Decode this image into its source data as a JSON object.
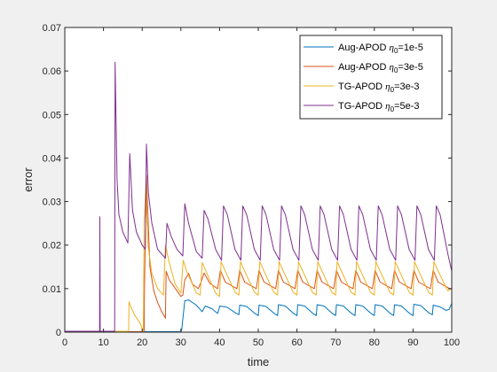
{
  "chart_data": {
    "type": "line",
    "title": "",
    "xlabel": "time",
    "ylabel": "error",
    "xlim": [
      0,
      100
    ],
    "ylim": [
      0,
      0.07
    ],
    "xticks": [
      "0",
      "10",
      "20",
      "30",
      "40",
      "50",
      "60",
      "70",
      "80",
      "90",
      "100"
    ],
    "yticks": [
      "0",
      "0.01",
      "0.02",
      "0.03",
      "0.04",
      "0.05",
      "0.06",
      "0.07"
    ],
    "grid": false,
    "legend_position": "top-right",
    "series": [
      {
        "name": "Aug-APOD η0=1e-5",
        "legend_main": "Aug-APOD ",
        "legend_sym": "η",
        "legend_sub": "0",
        "legend_rest": "=1e-5",
        "color": "#0072BD",
        "points": [
          [
            0,
            0.0001
          ],
          [
            30,
            0.0001
          ],
          [
            30.2,
            0.0005
          ],
          [
            31,
            0.0072
          ],
          [
            32,
            0.0074
          ],
          [
            34,
            0.0062
          ],
          [
            35.5,
            0.0047
          ],
          [
            36.3,
            0.006
          ],
          [
            38,
            0.0054
          ],
          [
            39.5,
            0.0043
          ],
          [
            40.1,
            0.006
          ],
          [
            42,
            0.0057
          ],
          [
            44,
            0.0045
          ],
          [
            45,
            0.004
          ],
          [
            45.2,
            0.0062
          ],
          [
            47,
            0.0059
          ],
          [
            49,
            0.0044
          ],
          [
            50,
            0.0038
          ],
          [
            50.2,
            0.0062
          ],
          [
            52,
            0.0059
          ],
          [
            54,
            0.0044
          ],
          [
            55,
            0.0038
          ],
          [
            55.2,
            0.0063
          ],
          [
            57,
            0.006
          ],
          [
            59,
            0.0044
          ],
          [
            60,
            0.0038
          ],
          [
            60.2,
            0.0063
          ],
          [
            62,
            0.006
          ],
          [
            64,
            0.0044
          ],
          [
            65,
            0.0038
          ],
          [
            65.2,
            0.0063
          ],
          [
            67,
            0.006
          ],
          [
            69,
            0.0044
          ],
          [
            70,
            0.0038
          ],
          [
            70.2,
            0.0063
          ],
          [
            72,
            0.006
          ],
          [
            74,
            0.0044
          ],
          [
            75,
            0.0038
          ],
          [
            75.2,
            0.0063
          ],
          [
            77,
            0.006
          ],
          [
            79,
            0.0044
          ],
          [
            80,
            0.0038
          ],
          [
            80.2,
            0.0063
          ],
          [
            82,
            0.006
          ],
          [
            84,
            0.0044
          ],
          [
            85,
            0.0038
          ],
          [
            85.2,
            0.0063
          ],
          [
            87,
            0.006
          ],
          [
            89,
            0.0044
          ],
          [
            90,
            0.0038
          ],
          [
            90.2,
            0.0064
          ],
          [
            92,
            0.0061
          ],
          [
            94,
            0.0045
          ],
          [
            95,
            0.004
          ],
          [
            95.2,
            0.0062
          ],
          [
            97,
            0.0058
          ],
          [
            98.5,
            0.005
          ],
          [
            99.3,
            0.0052
          ],
          [
            100,
            0.0066
          ]
        ]
      },
      {
        "name": "Aug-APOD η0=3e-5",
        "legend_main": "Aug-APOD ",
        "legend_sym": "η",
        "legend_sub": "0",
        "legend_rest": "=3e-5",
        "color": "#D95319",
        "points": [
          [
            0,
            0.0001
          ],
          [
            20.5,
            0.0001
          ],
          [
            20.6,
            0.01
          ],
          [
            21.1,
            0.036
          ],
          [
            22,
            0.015
          ],
          [
            23,
            0.0095
          ],
          [
            24,
            0.0068
          ],
          [
            25,
            0.0048
          ],
          [
            26,
            0.0032
          ],
          [
            26.2,
            0.014
          ],
          [
            27,
            0.012
          ],
          [
            29,
            0.0095
          ],
          [
            30,
            0.0082
          ],
          [
            30.5,
            0.0085
          ],
          [
            31,
            0.012
          ],
          [
            32,
            0.0135
          ],
          [
            33,
            0.011
          ],
          [
            34.5,
            0.01
          ],
          [
            35.2,
            0.0115
          ],
          [
            36,
            0.0136
          ],
          [
            37.5,
            0.0112
          ],
          [
            39.5,
            0.01
          ],
          [
            40.2,
            0.0142
          ],
          [
            41.5,
            0.0115
          ],
          [
            44.5,
            0.01
          ],
          [
            45.2,
            0.0142
          ],
          [
            46.5,
            0.0115
          ],
          [
            49.5,
            0.01
          ],
          [
            50.2,
            0.0142
          ],
          [
            51.5,
            0.0115
          ],
          [
            54.5,
            0.01
          ],
          [
            55.2,
            0.0142
          ],
          [
            56.5,
            0.0115
          ],
          [
            59.5,
            0.01
          ],
          [
            60.2,
            0.0142
          ],
          [
            61.5,
            0.0115
          ],
          [
            64.5,
            0.01
          ],
          [
            65.2,
            0.0142
          ],
          [
            66.5,
            0.0115
          ],
          [
            69.5,
            0.01
          ],
          [
            70.2,
            0.0142
          ],
          [
            71.5,
            0.0115
          ],
          [
            74.5,
            0.01
          ],
          [
            75.2,
            0.0142
          ],
          [
            76.5,
            0.0115
          ],
          [
            79.5,
            0.01
          ],
          [
            80.2,
            0.0142
          ],
          [
            81.5,
            0.0115
          ],
          [
            84.5,
            0.01
          ],
          [
            85.2,
            0.0142
          ],
          [
            86.5,
            0.0115
          ],
          [
            89.5,
            0.01
          ],
          [
            90.2,
            0.0142
          ],
          [
            91.5,
            0.0115
          ],
          [
            94.5,
            0.01
          ],
          [
            95.2,
            0.0142
          ],
          [
            96.5,
            0.0115
          ],
          [
            99.5,
            0.01
          ],
          [
            100,
            0.01
          ]
        ]
      },
      {
        "name": "TG-APOD η0=3e-3",
        "legend_main": "TG-APOD ",
        "legend_sym": "η",
        "legend_sub": "0",
        "legend_rest": "=3e-3",
        "color": "#EDB120",
        "points": [
          [
            0,
            0.0002
          ],
          [
            16.5,
            0.0002
          ],
          [
            16.6,
            0.007
          ],
          [
            17,
            0.006
          ],
          [
            18,
            0.004
          ],
          [
            19.5,
            0.002
          ],
          [
            20.3,
            0.0001
          ],
          [
            20.5,
            0.025
          ],
          [
            21,
            0.035
          ],
          [
            21.5,
            0.02
          ],
          [
            22.5,
            0.0135
          ],
          [
            24,
            0.01
          ],
          [
            25.5,
            0.0085
          ],
          [
            26,
            0.02
          ],
          [
            27,
            0.016
          ],
          [
            28.5,
            0.011
          ],
          [
            30,
            0.009
          ],
          [
            30.6,
            0.0165
          ],
          [
            31.5,
            0.014
          ],
          [
            34,
            0.009
          ],
          [
            35,
            0.0085
          ],
          [
            35.5,
            0.016
          ],
          [
            36.5,
            0.014
          ],
          [
            39,
            0.009
          ],
          [
            40,
            0.0082
          ],
          [
            40.4,
            0.0162
          ],
          [
            41.5,
            0.014
          ],
          [
            44,
            0.0092
          ],
          [
            45,
            0.0085
          ],
          [
            45.4,
            0.0162
          ],
          [
            46.5,
            0.014
          ],
          [
            49,
            0.0092
          ],
          [
            50,
            0.0085
          ],
          [
            50.4,
            0.0162
          ],
          [
            51.5,
            0.014
          ],
          [
            54,
            0.0092
          ],
          [
            55,
            0.0085
          ],
          [
            55.4,
            0.0162
          ],
          [
            56.5,
            0.014
          ],
          [
            59,
            0.0092
          ],
          [
            60,
            0.0085
          ],
          [
            60.4,
            0.0162
          ],
          [
            61.5,
            0.014
          ],
          [
            64,
            0.0092
          ],
          [
            65,
            0.0085
          ],
          [
            65.4,
            0.0162
          ],
          [
            66.5,
            0.014
          ],
          [
            69,
            0.0092
          ],
          [
            70,
            0.0085
          ],
          [
            70.4,
            0.0162
          ],
          [
            71.5,
            0.014
          ],
          [
            74,
            0.0092
          ],
          [
            75,
            0.0085
          ],
          [
            75.4,
            0.0162
          ],
          [
            76.5,
            0.014
          ],
          [
            79,
            0.0092
          ],
          [
            80,
            0.0085
          ],
          [
            80.4,
            0.0162
          ],
          [
            81.5,
            0.014
          ],
          [
            84,
            0.0092
          ],
          [
            85,
            0.0085
          ],
          [
            85.4,
            0.0162
          ],
          [
            86.5,
            0.014
          ],
          [
            89,
            0.0092
          ],
          [
            90,
            0.0085
          ],
          [
            90.4,
            0.0162
          ],
          [
            91.5,
            0.014
          ],
          [
            94,
            0.0092
          ],
          [
            95,
            0.0085
          ],
          [
            95.4,
            0.0162
          ],
          [
            96.5,
            0.014
          ],
          [
            99,
            0.0095
          ],
          [
            100,
            0.01
          ]
        ]
      },
      {
        "name": "TG-APOD η0=5e-3",
        "legend_main": "TG-APOD ",
        "legend_sym": "η",
        "legend_sub": "0",
        "legend_rest": "=5e-3",
        "color": "#7E2F8E",
        "points": [
          [
            0,
            0.0002
          ],
          [
            9,
            0.0002
          ],
          [
            9.05,
            0.0265
          ],
          [
            9.15,
            0.0002
          ],
          [
            12.9,
            0.0002
          ],
          [
            13,
            0.062
          ],
          [
            13.5,
            0.035
          ],
          [
            14,
            0.027
          ],
          [
            15,
            0.023
          ],
          [
            16.3,
            0.0205
          ],
          [
            16.8,
            0.041
          ],
          [
            17.5,
            0.028
          ],
          [
            18.5,
            0.023
          ],
          [
            20,
            0.02
          ],
          [
            20.8,
            0.019
          ],
          [
            21.1,
            0.0432
          ],
          [
            21.6,
            0.032
          ],
          [
            22.5,
            0.025
          ],
          [
            24,
            0.019
          ],
          [
            26,
            0.017
          ],
          [
            26.4,
            0.025
          ],
          [
            27.5,
            0.022
          ],
          [
            29,
            0.019
          ],
          [
            30.5,
            0.0175
          ],
          [
            31,
            0.0295
          ],
          [
            32,
            0.025
          ],
          [
            34,
            0.0185
          ],
          [
            35.5,
            0.017
          ],
          [
            36,
            0.028
          ],
          [
            37,
            0.026
          ],
          [
            39,
            0.019
          ],
          [
            40.5,
            0.0165
          ],
          [
            41,
            0.029
          ],
          [
            42,
            0.027
          ],
          [
            44,
            0.019
          ],
          [
            45.5,
            0.0165
          ],
          [
            46,
            0.029
          ],
          [
            47,
            0.027
          ],
          [
            49,
            0.019
          ],
          [
            50.5,
            0.0165
          ],
          [
            51,
            0.029
          ],
          [
            52,
            0.027
          ],
          [
            54,
            0.019
          ],
          [
            55.5,
            0.0165
          ],
          [
            56,
            0.029
          ],
          [
            57,
            0.027
          ],
          [
            59,
            0.019
          ],
          [
            60.5,
            0.0165
          ],
          [
            61,
            0.029
          ],
          [
            62,
            0.027
          ],
          [
            64,
            0.019
          ],
          [
            65.5,
            0.0165
          ],
          [
            66,
            0.029
          ],
          [
            67,
            0.027
          ],
          [
            69,
            0.019
          ],
          [
            70.5,
            0.0165
          ],
          [
            71,
            0.029
          ],
          [
            72,
            0.027
          ],
          [
            74,
            0.019
          ],
          [
            75.5,
            0.0165
          ],
          [
            76,
            0.029
          ],
          [
            77,
            0.027
          ],
          [
            79,
            0.019
          ],
          [
            80.5,
            0.0165
          ],
          [
            81,
            0.029
          ],
          [
            82,
            0.027
          ],
          [
            84,
            0.019
          ],
          [
            85.5,
            0.0165
          ],
          [
            86,
            0.029
          ],
          [
            87,
            0.027
          ],
          [
            89,
            0.019
          ],
          [
            90.5,
            0.0165
          ],
          [
            91,
            0.029
          ],
          [
            92,
            0.027
          ],
          [
            94,
            0.019
          ],
          [
            95.5,
            0.0165
          ],
          [
            96,
            0.029
          ],
          [
            97,
            0.027
          ],
          [
            99,
            0.018
          ],
          [
            100,
            0.014
          ]
        ]
      }
    ]
  }
}
